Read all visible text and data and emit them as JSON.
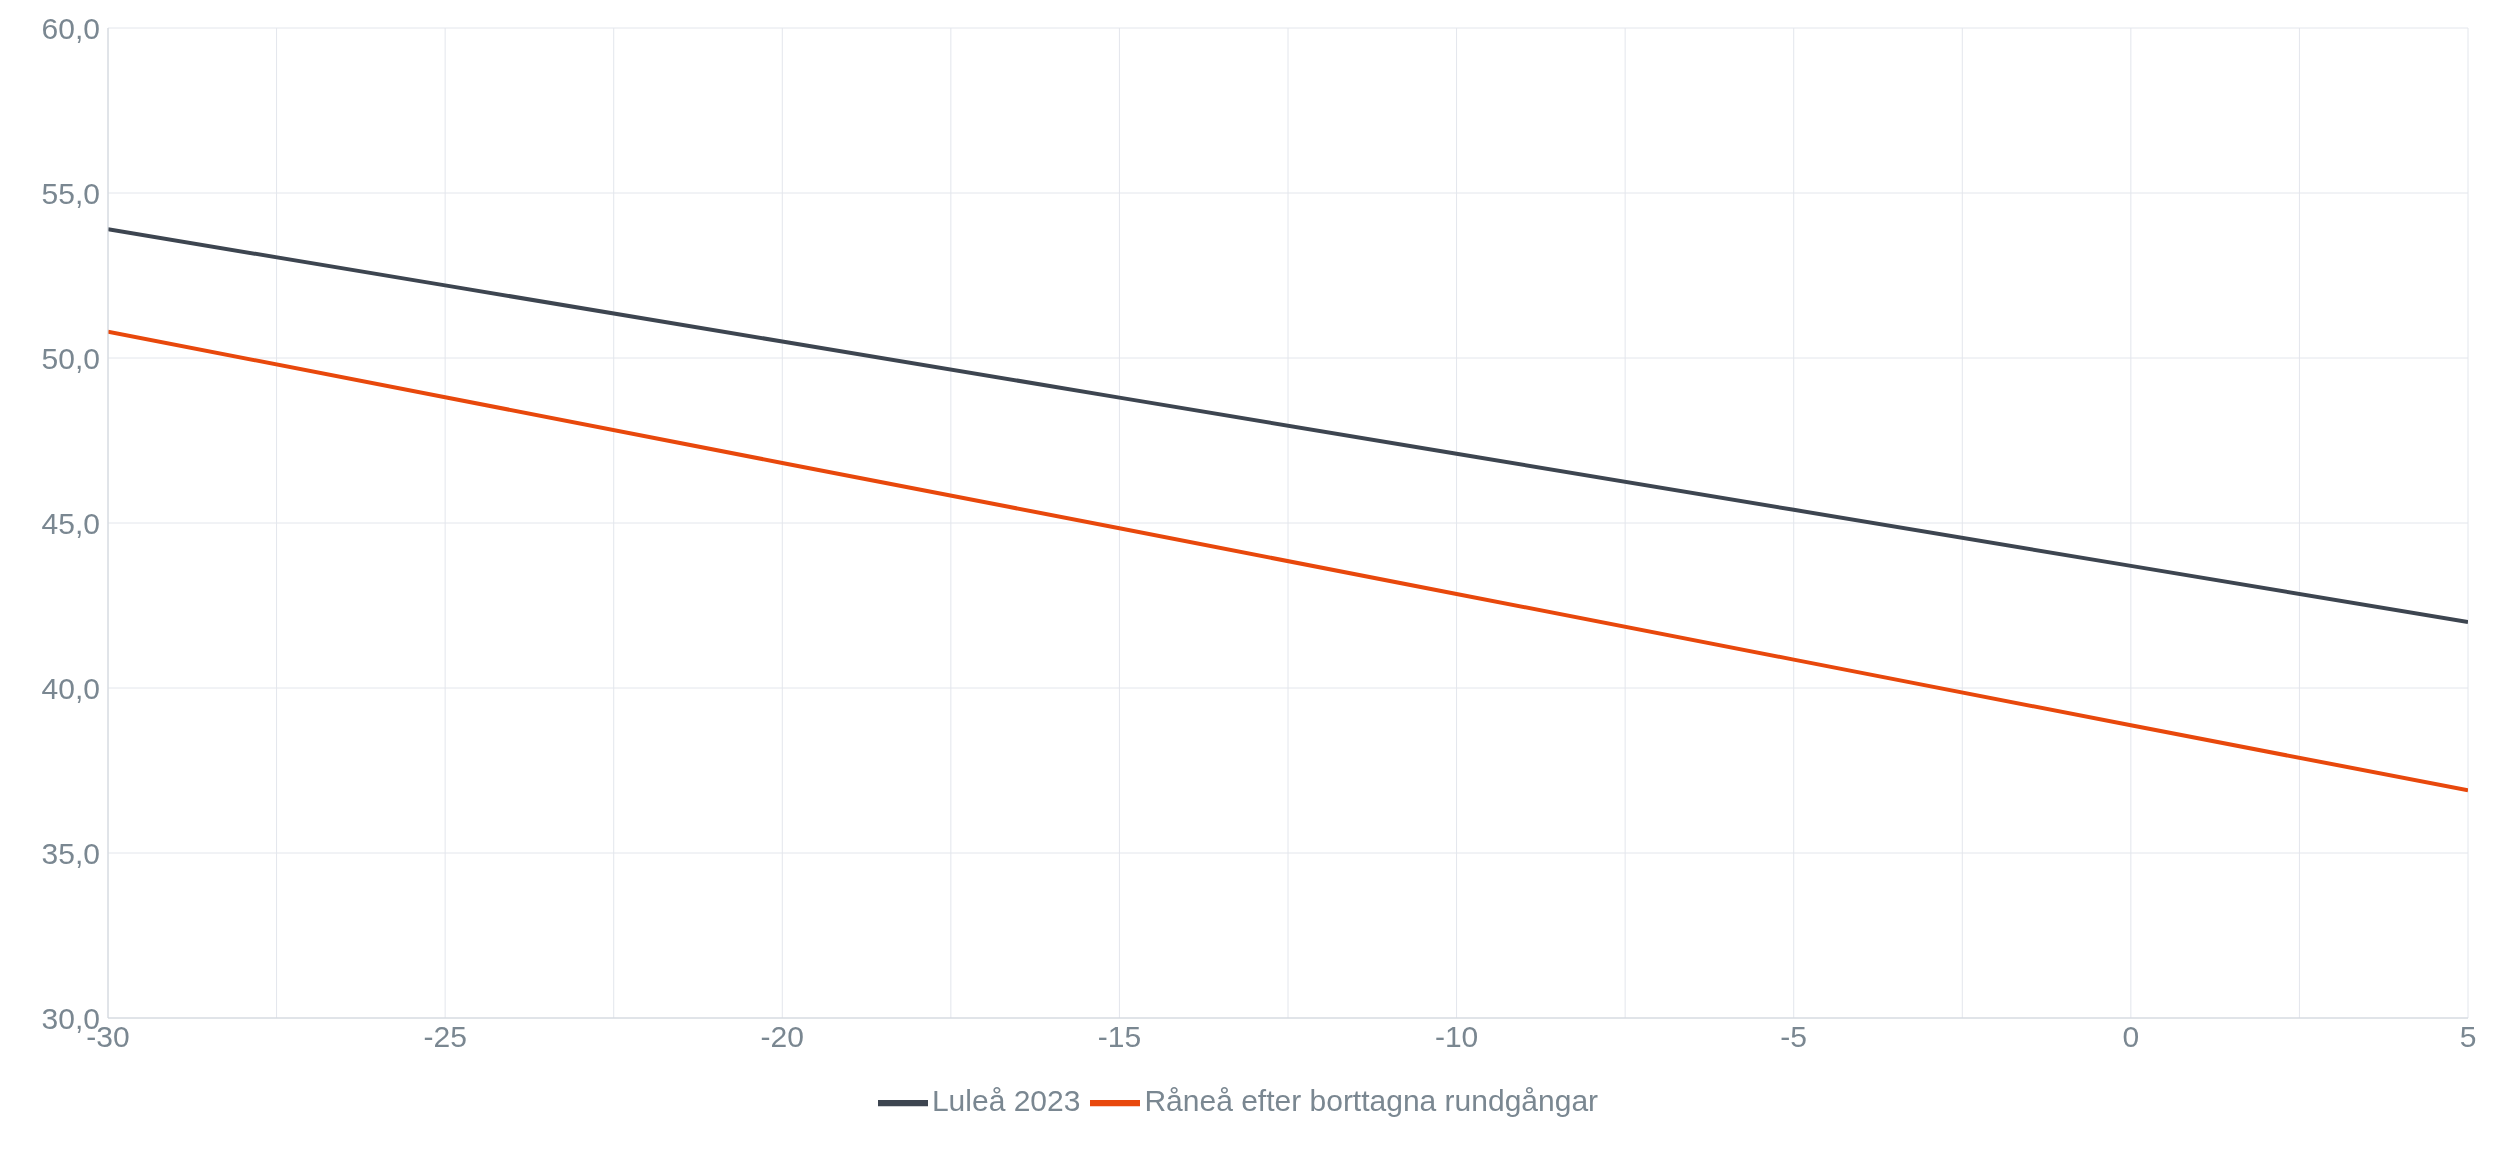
{
  "chart_data": {
    "type": "line",
    "x": [
      -30,
      -25,
      -20,
      -15,
      -10,
      -5,
      0,
      5
    ],
    "series": [
      {
        "name": "Luleå 2023",
        "color": "#3d4550",
        "values": [
          53.9,
          52.2,
          50.5,
          48.8,
          47.1,
          45.4,
          43.7,
          42.0
        ]
      },
      {
        "name": "Råneå efter borttagna rundgångar",
        "color": "#e8480c",
        "values": [
          50.8,
          48.81,
          46.82,
          44.84,
          42.85,
          40.86,
          38.87,
          36.9
        ]
      }
    ],
    "xlim": [
      -30,
      5
    ],
    "xticks": [
      -30,
      {
        "value": -27.5,
        "label": null
      },
      -25,
      {
        "value": -22.5,
        "label": null
      },
      -20,
      {
        "value": -17.5,
        "label": null
      },
      -15,
      {
        "value": -12.5,
        "label": null
      },
      -10,
      {
        "value": -7.5,
        "label": null
      },
      -5,
      {
        "value": -2.5,
        "label": null
      },
      0,
      {
        "value": 2.5,
        "label": null
      },
      5
    ],
    "ylim": [
      30,
      60
    ],
    "yticks": [
      {
        "value": 30,
        "label": "30,0"
      },
      {
        "value": 35,
        "label": "35,0"
      },
      {
        "value": 40,
        "label": "40,0"
      },
      {
        "value": 45,
        "label": "45,0"
      },
      {
        "value": 50,
        "label": "50,0"
      },
      {
        "value": 55,
        "label": "55,0"
      },
      {
        "value": 60,
        "label": "60,0"
      }
    ],
    "grid": true,
    "legend": "bottom",
    "marker": "none",
    "line_style": "solid"
  }
}
